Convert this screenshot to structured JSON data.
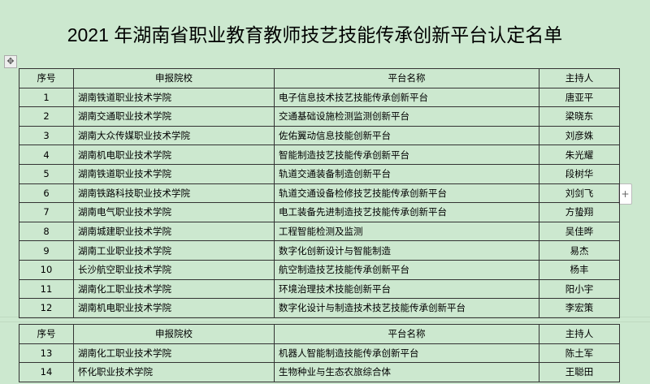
{
  "title": "2021 年湖南省职业教育教师技艺技能传承创新平台认定名单",
  "headers": [
    "序号",
    "申报院校",
    "平台名称",
    "主持人"
  ],
  "rows": [
    [
      "1",
      "湖南铁道职业技术学院",
      "电子信息技术技艺技能传承创新平台",
      "唐亚平"
    ],
    [
      "2",
      "湖南交通职业技术学院",
      "交通基础设施检测监测创新平台",
      "梁晓东"
    ],
    [
      "3",
      "湖南大众传媒职业技术学院",
      "佐佑翼动信息技能创新平台",
      "刘彦姝"
    ],
    [
      "4",
      "湖南机电职业技术学院",
      "智能制造技艺技能传承创新平台",
      "朱光耀"
    ],
    [
      "5",
      "湖南铁道职业技术学院",
      "轨道交通装备制造创新平台",
      "段树华"
    ],
    [
      "6",
      "湖南铁路科技职业技术学院",
      "轨道交通设备检修技艺技能传承创新平台",
      "刘剑飞"
    ],
    [
      "7",
      "湖南电气职业技术学院",
      "电工装备先进制造技艺技能传承创新平台",
      "方蛰翔"
    ],
    [
      "8",
      "湖南城建职业技术学院",
      "工程智能检测及监测",
      "吴佳晔"
    ],
    [
      "9",
      "湖南工业职业技术学院",
      "数字化创新设计与智能制造",
      "易杰"
    ],
    [
      "10",
      "长沙航空职业技术学院",
      "航空制造技艺技能传承创新平台",
      "杨丰"
    ],
    [
      "11",
      "湖南化工职业技术学院",
      "环境治理技术技能创新平台",
      "阳小宇"
    ],
    [
      "12",
      "湖南机电职业技术学院",
      "数字化设计与制造技术技艺技能传承创新平台",
      "李宏策"
    ],
    [
      "13",
      "湖南化工职业技术学院",
      "机器人智能制造技能传承创新平台",
      "陈土军"
    ],
    [
      "14",
      "怀化职业技术学院",
      "生物种业与生态农旅综合体",
      "王聪田"
    ]
  ],
  "icons": {
    "move": "move-handle-icon",
    "add": "plus-icon"
  },
  "colors": {
    "background": "#cce8cf",
    "border": "#333333"
  }
}
